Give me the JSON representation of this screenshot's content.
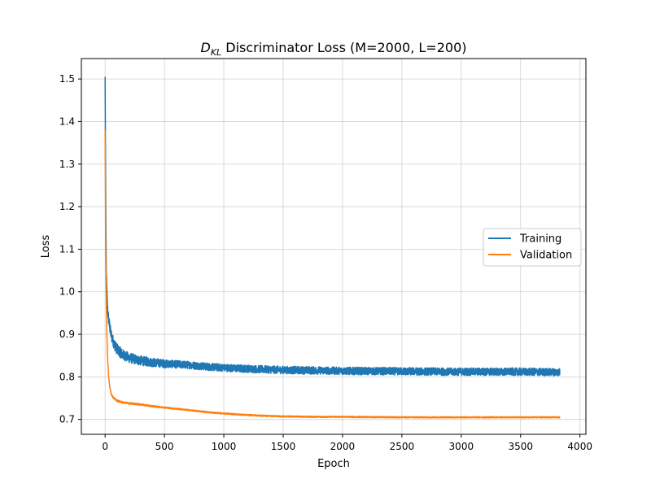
{
  "chart_data": {
    "type": "line",
    "title": {
      "main": "D",
      "sub": "KL",
      "rest": " Discriminator Loss (M=2000, L=200)"
    },
    "xlabel": "Epoch",
    "ylabel": "Loss",
    "xlim": [
      -200,
      4050
    ],
    "ylim": [
      0.665,
      1.548
    ],
    "xticks": [
      0,
      500,
      1000,
      1500,
      2000,
      2500,
      3000,
      3500,
      4000
    ],
    "xtick_labels": [
      "0",
      "500",
      "1000",
      "1500",
      "2000",
      "2500",
      "3000",
      "3500",
      "4000"
    ],
    "yticks": [
      0.7,
      0.8,
      0.9,
      1.0,
      1.1,
      1.2,
      1.3,
      1.4,
      1.5
    ],
    "ytick_labels": [
      "0.7",
      "0.8",
      "0.9",
      "1.0",
      "1.1",
      "1.2",
      "1.3",
      "1.4",
      "1.5"
    ],
    "grid": true,
    "legend_position": "center-right",
    "series": [
      {
        "name": "Training",
        "color": "#1f77b4",
        "x": [
          0,
          5,
          10,
          20,
          30,
          40,
          50,
          60,
          80,
          100,
          150,
          200,
          300,
          400,
          500,
          700,
          900,
          1100,
          1300,
          1500,
          1800,
          2000,
          2500,
          3000,
          3500,
          3830
        ],
        "y": [
          1.505,
          1.22,
          1.04,
          0.96,
          0.935,
          0.915,
          0.9,
          0.89,
          0.875,
          0.865,
          0.852,
          0.845,
          0.838,
          0.834,
          0.831,
          0.828,
          0.823,
          0.82,
          0.818,
          0.816,
          0.815,
          0.814,
          0.813,
          0.812,
          0.812,
          0.811
        ],
        "noise": 0.009
      },
      {
        "name": "Validation",
        "color": "#ff7f0e",
        "x": [
          0,
          5,
          10,
          15,
          20,
          30,
          40,
          50,
          60,
          80,
          100,
          150,
          200,
          300,
          400,
          500,
          700,
          900,
          1100,
          1300,
          1500,
          1800,
          2000,
          2500,
          3000,
          3500,
          3830
        ],
        "y": [
          1.38,
          1.1,
          0.98,
          0.9,
          0.85,
          0.8,
          0.775,
          0.762,
          0.755,
          0.748,
          0.744,
          0.74,
          0.738,
          0.735,
          0.731,
          0.728,
          0.722,
          0.716,
          0.712,
          0.709,
          0.707,
          0.706,
          0.706,
          0.705,
          0.705,
          0.705,
          0.705
        ],
        "noise": 0.0015
      }
    ]
  }
}
